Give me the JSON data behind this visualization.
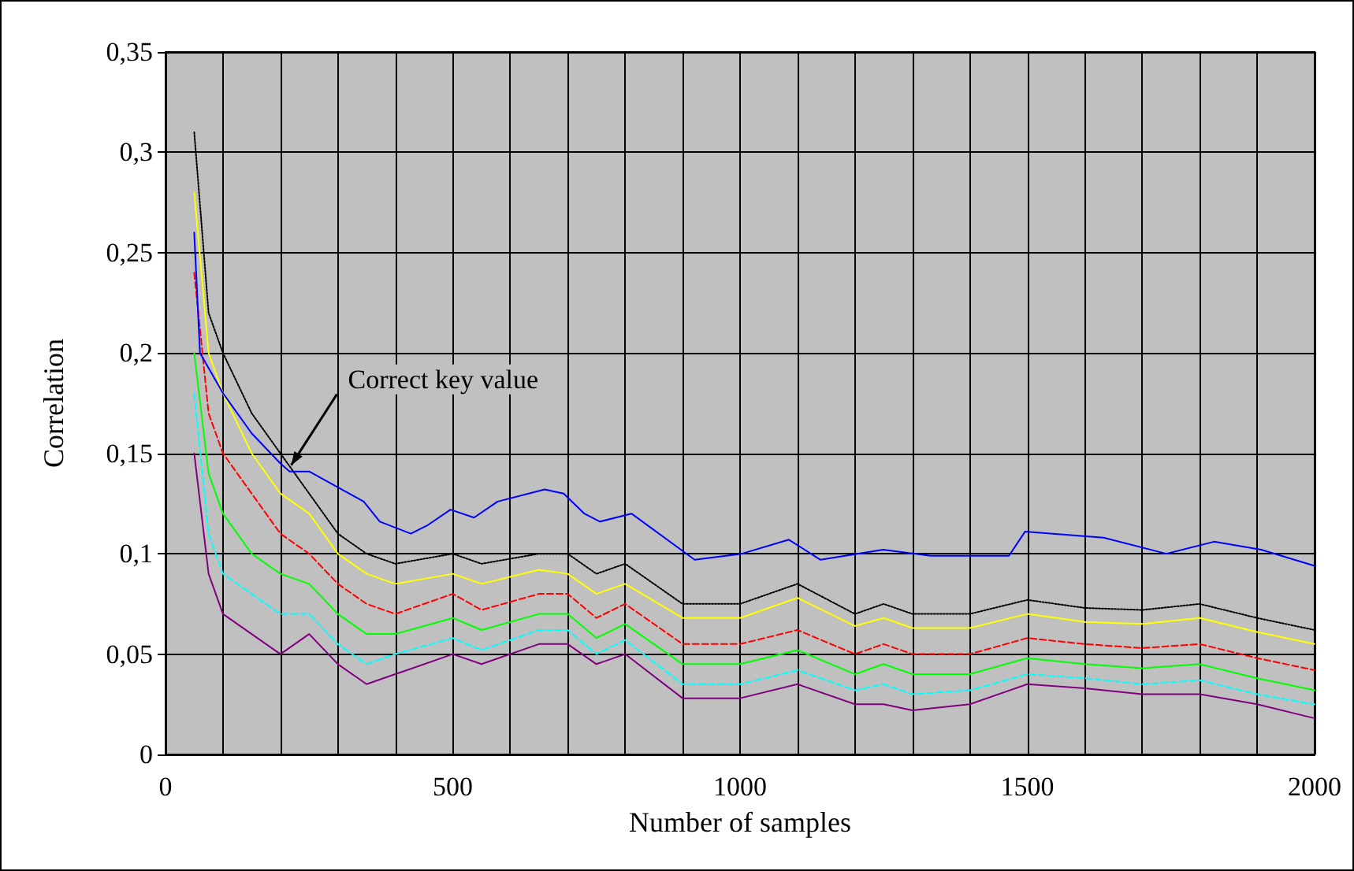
{
  "chart_data": {
    "type": "line",
    "xlabel": "Number of samples",
    "ylabel": "Correlation",
    "annotations": [
      {
        "text": "Correct key value",
        "x": 216,
        "y": 0.141
      }
    ],
    "x": [
      50,
      75,
      100,
      150,
      200,
      250,
      300,
      350,
      400,
      500,
      550,
      650,
      700,
      750,
      800,
      900,
      1000,
      1100,
      1200,
      1250,
      1300,
      1400,
      1500,
      1600,
      1700,
      1800,
      1900,
      2000
    ],
    "series": [
      {
        "color": "#000000",
        "line_style": "dotted",
        "values": [
          0.31,
          0.22,
          0.2,
          0.17,
          0.15,
          0.13,
          0.11,
          0.1,
          0.095,
          0.1,
          0.095,
          0.1,
          0.1,
          0.09,
          0.095,
          0.075,
          0.075,
          0.085,
          0.07,
          0.075,
          0.07,
          0.07,
          0.077,
          0.073,
          0.072,
          0.075,
          0.068,
          0.062
        ]
      },
      {
        "color": "#ffff00",
        "line_style": "solid",
        "values": [
          0.28,
          0.2,
          0.18,
          0.15,
          0.13,
          0.12,
          0.1,
          0.09,
          0.085,
          0.09,
          0.085,
          0.092,
          0.09,
          0.08,
          0.085,
          0.068,
          0.068,
          0.078,
          0.064,
          0.068,
          0.063,
          0.063,
          0.07,
          0.066,
          0.065,
          0.068,
          0.061,
          0.055
        ]
      },
      {
        "color": "#ff0000",
        "line_style": "dashed",
        "values": [
          0.24,
          0.17,
          0.15,
          0.13,
          0.11,
          0.1,
          0.085,
          0.075,
          0.07,
          0.08,
          0.072,
          0.08,
          0.08,
          0.068,
          0.075,
          0.055,
          0.055,
          0.062,
          0.05,
          0.055,
          0.05,
          0.05,
          0.058,
          0.055,
          0.053,
          0.055,
          0.048,
          0.042
        ]
      },
      {
        "color": "#00ff00",
        "line_style": "solid",
        "values": [
          0.2,
          0.14,
          0.12,
          0.1,
          0.09,
          0.085,
          0.07,
          0.06,
          0.06,
          0.068,
          0.062,
          0.07,
          0.07,
          0.058,
          0.065,
          0.045,
          0.045,
          0.052,
          0.04,
          0.045,
          0.04,
          0.04,
          0.048,
          0.045,
          0.043,
          0.045,
          0.038,
          0.032
        ]
      },
      {
        "color": "#00ffff",
        "line_style": "dashed",
        "values": [
          0.18,
          0.11,
          0.09,
          0.08,
          0.07,
          0.07,
          0.055,
          0.045,
          0.05,
          0.058,
          0.052,
          0.062,
          0.062,
          0.05,
          0.057,
          0.035,
          0.035,
          0.042,
          0.032,
          0.035,
          0.03,
          0.032,
          0.04,
          0.038,
          0.035,
          0.037,
          0.03,
          0.025
        ]
      },
      {
        "color": "#800080",
        "line_style": "solid",
        "values": [
          0.15,
          0.09,
          0.07,
          0.06,
          0.05,
          0.06,
          0.045,
          0.035,
          0.04,
          0.05,
          0.045,
          0.055,
          0.055,
          0.045,
          0.05,
          0.028,
          0.028,
          0.035,
          0.025,
          0.025,
          0.022,
          0.025,
          0.035,
          0.033,
          0.03,
          0.03,
          0.025,
          0.018
        ]
      },
      {
        "color": "#0000ff",
        "line_style": "solid",
        "x": [
          50,
          60,
          100,
          150,
          200,
          216,
          250,
          345,
          373,
          427,
          455,
          496,
          537,
          578,
          660,
          693,
          729,
          756,
          811,
          921,
          1003,
          1085,
          1140,
          1249,
          1332,
          1468,
          1496,
          1633,
          1742,
          1825,
          1907,
          2000
        ],
        "values": [
          0.26,
          0.2,
          0.18,
          0.16,
          0.145,
          0.141,
          0.141,
          0.126,
          0.116,
          0.11,
          0.114,
          0.122,
          0.118,
          0.126,
          0.132,
          0.13,
          0.12,
          0.116,
          0.12,
          0.097,
          0.1,
          0.107,
          0.097,
          0.102,
          0.099,
          0.099,
          0.111,
          0.108,
          0.1,
          0.106,
          0.102,
          0.094
        ]
      }
    ],
    "xlim": [
      0,
      2000
    ],
    "xticks": [
      0,
      {
        "value": 100,
        "label": null
      },
      {
        "value": 200,
        "label": null
      },
      {
        "value": 300,
        "label": null
      },
      {
        "value": 400,
        "label": null
      },
      500,
      {
        "value": 600,
        "label": null
      },
      {
        "value": 700,
        "label": null
      },
      {
        "value": 800,
        "label": null
      },
      {
        "value": 900,
        "label": null
      },
      1000,
      {
        "value": 1100,
        "label": null
      },
      {
        "value": 1200,
        "label": null
      },
      {
        "value": 1300,
        "label": null
      },
      {
        "value": 1400,
        "label": null
      },
      1500,
      {
        "value": 1600,
        "label": null
      },
      {
        "value": 1700,
        "label": null
      },
      {
        "value": 1800,
        "label": null
      },
      {
        "value": 1900,
        "label": null
      },
      2000
    ],
    "ylim": [
      0,
      0.35
    ],
    "yticks": [
      0,
      {
        "value": 0.05,
        "label": "0,05"
      },
      {
        "value": 0.1,
        "label": "0,1"
      },
      {
        "value": 0.15,
        "label": "0,15"
      },
      {
        "value": 0.2,
        "label": "0,2"
      },
      {
        "value": 0.25,
        "label": "0,25"
      },
      {
        "value": 0.3,
        "label": "0,3"
      },
      {
        "value": 0.35,
        "label": "0,35"
      }
    ],
    "grid": true,
    "marker": "none"
  }
}
